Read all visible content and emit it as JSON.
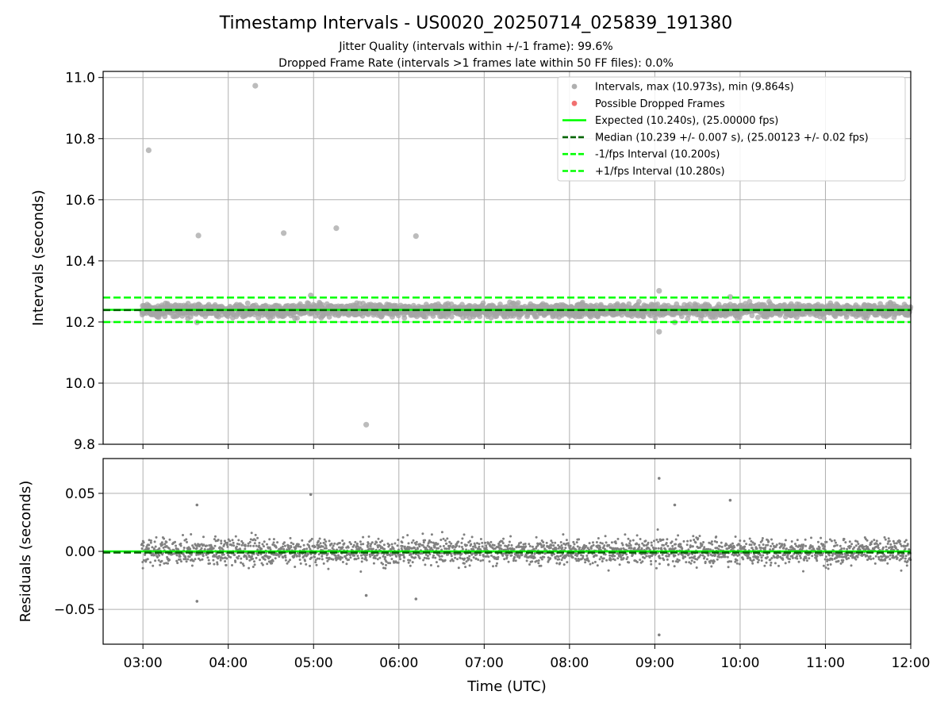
{
  "chart_data": [
    {
      "type": "scatter",
      "panel": "intervals",
      "title": "Timestamp Intervals - US0020_20250714_025839_191380",
      "subtitle_1": "Jitter Quality (intervals within +/-1 frame): 99.6%",
      "subtitle_2": "Dropped Frame Rate (intervals >1 frames late within 50 FF files): 0.0%",
      "ylabel": "Intervals (seconds)",
      "xlabel": "",
      "xlim": [
        "02:32",
        "12:00"
      ],
      "ylim": [
        9.8,
        11.02
      ],
      "grid": true,
      "legend_position": "top-right",
      "yticks": [
        "9.8",
        "10.0",
        "10.2",
        "10.4",
        "10.6",
        "10.8",
        "11.0"
      ],
      "xticks": [
        "03:00",
        "04:00",
        "05:00",
        "06:00",
        "07:00",
        "08:00",
        "09:00",
        "10:00",
        "11:00",
        "12:00"
      ],
      "legend": [
        {
          "label": "Intervals, max (10.973s), min (9.864s)",
          "kind": "dot",
          "color": "#a6a6a6"
        },
        {
          "label": "Possible Dropped Frames",
          "kind": "dot",
          "color": "#f06060"
        },
        {
          "label": "Expected (10.240s), (25.00000 fps)",
          "kind": "solid",
          "color": "#00ff00"
        },
        {
          "label": "Median (10.239 +/- 0.007 s), (25.00123 +/- 0.02 fps)",
          "kind": "dashed",
          "color": "#006400"
        },
        {
          "label": "-1/fps Interval (10.200s)",
          "kind": "dashed",
          "color": "#00ff00"
        },
        {
          "label": "+1/fps Interval (10.280s)",
          "kind": "dashed",
          "color": "#00ff00"
        }
      ],
      "reference_lines": [
        {
          "name": "Expected",
          "y": 10.24,
          "style": "solid",
          "color": "#00ff00"
        },
        {
          "name": "Median",
          "y": 10.239,
          "style": "dashed",
          "color": "#006400"
        },
        {
          "name": "-1/fps Interval",
          "y": 10.2,
          "style": "dashed",
          "color": "#00ff00"
        },
        {
          "name": "+1/fps Interval",
          "y": 10.28,
          "style": "dashed",
          "color": "#00ff00"
        }
      ],
      "dense_band": {
        "x_start": "02:59",
        "x_end": "12:00",
        "y_center": 10.239,
        "y_spread": 0.018
      },
      "outliers": [
        {
          "x": "03:04",
          "y": 10.762
        },
        {
          "x": "03:39",
          "y": 10.483
        },
        {
          "x": "04:19",
          "y": 10.973
        },
        {
          "x": "04:39",
          "y": 10.491
        },
        {
          "x": "05:16",
          "y": 10.507
        },
        {
          "x": "05:37",
          "y": 9.864
        },
        {
          "x": "06:12",
          "y": 10.481
        },
        {
          "x": "09:03",
          "y": 10.302
        },
        {
          "x": "09:03",
          "y": 10.168
        },
        {
          "x": "03:38",
          "y": 10.199
        },
        {
          "x": "04:58",
          "y": 10.287
        },
        {
          "x": "09:53",
          "y": 10.282
        },
        {
          "x": "09:14",
          "y": 10.199
        }
      ]
    },
    {
      "type": "scatter",
      "panel": "residuals",
      "ylabel": "Residuals (seconds)",
      "xlabel": "Time (UTC)",
      "xlim": [
        "02:32",
        "12:00"
      ],
      "ylim": [
        -0.08,
        0.08
      ],
      "grid": true,
      "yticks": [
        "−0.05",
        "0.00",
        "0.05"
      ],
      "xticks": [
        "03:00",
        "04:00",
        "05:00",
        "06:00",
        "07:00",
        "08:00",
        "09:00",
        "10:00",
        "11:00",
        "12:00"
      ],
      "reference_lines": [
        {
          "name": "Expected",
          "y": 0.0,
          "style": "solid",
          "color": "#00ff00"
        },
        {
          "name": "Median",
          "y": -0.001,
          "style": "dashed",
          "color": "#006400"
        }
      ],
      "dense_band": {
        "x_start": "02:59",
        "x_end": "12:00",
        "y_center": 0.0,
        "y_spread": 0.01
      },
      "outliers": [
        {
          "x": "09:03",
          "y": 0.063
        },
        {
          "x": "09:03",
          "y": -0.072
        },
        {
          "x": "04:58",
          "y": 0.049
        },
        {
          "x": "09:53",
          "y": 0.044
        },
        {
          "x": "03:38",
          "y": 0.04
        },
        {
          "x": "09:14",
          "y": 0.04
        },
        {
          "x": "03:38",
          "y": -0.043
        },
        {
          "x": "06:12",
          "y": -0.041
        },
        {
          "x": "05:37",
          "y": -0.038
        }
      ]
    }
  ],
  "colors": {
    "points": "#a6a6a6",
    "residual_points": "#808080",
    "expected": "#00ff00",
    "median": "#006400",
    "bounds": "#00ff00",
    "grid": "#b0b0b0"
  }
}
